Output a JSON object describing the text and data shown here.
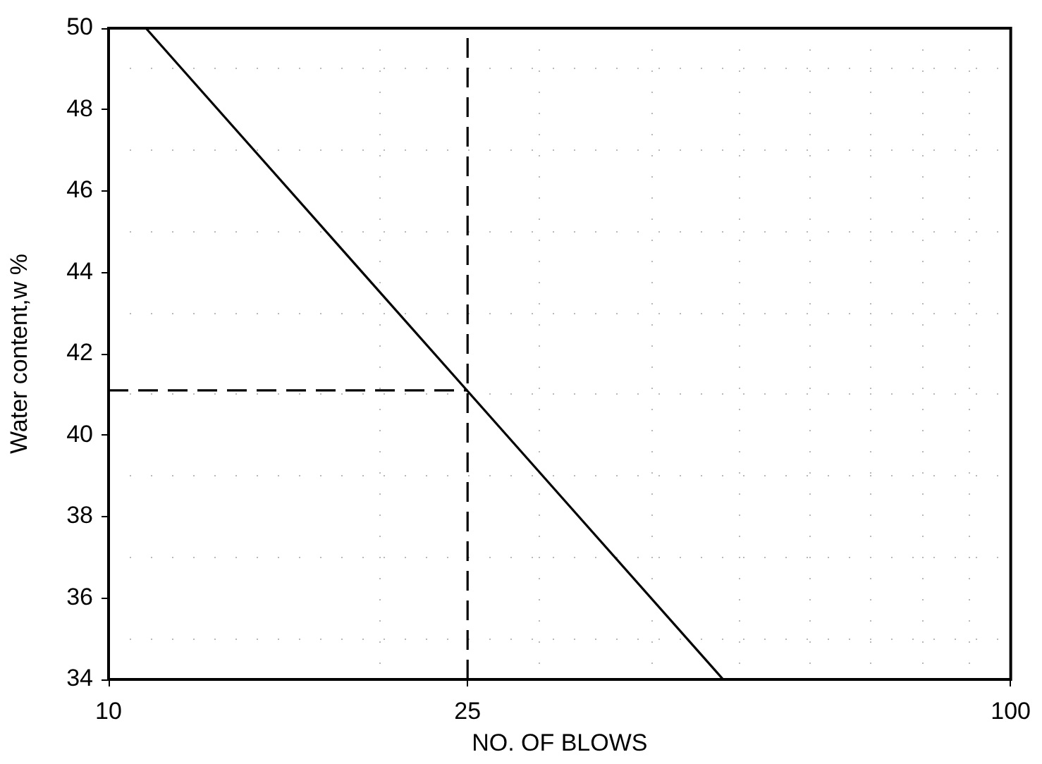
{
  "chart_data": {
    "type": "line",
    "xlabel": "NO. OF BLOWS",
    "ylabel": "Water content,w %",
    "log": "x",
    "xlim": [
      10,
      100
    ],
    "xticks": [
      10,
      {
        "value": 20,
        "label": null
      },
      25,
      {
        "value": 30,
        "label": null
      },
      {
        "value": 40,
        "label": null
      },
      {
        "value": 50,
        "label": null
      },
      {
        "value": 60,
        "label": null
      },
      {
        "value": 70,
        "label": null
      },
      {
        "value": 80,
        "label": null
      },
      {
        "value": 90,
        "label": null
      },
      100
    ],
    "ylim": [
      34,
      50
    ],
    "yticks": [
      34,
      {
        "value": 35,
        "label": null
      },
      36,
      {
        "value": 37,
        "label": null
      },
      38,
      {
        "value": 39,
        "label": null
      },
      40,
      {
        "value": 41,
        "label": null
      },
      42,
      {
        "value": 43,
        "label": null
      },
      44,
      {
        "value": 45,
        "label": null
      },
      46,
      {
        "value": 47,
        "label": null
      },
      48,
      {
        "value": 49,
        "label": null
      },
      50
    ],
    "grid": true,
    "marker": "none",
    "series": [
      {
        "color": "#000000",
        "x": [
          11,
          48
        ],
        "values": [
          50,
          34
        ],
        "line_style": "solid"
      },
      {
        "color": "#000000",
        "x": [
          10,
          25
        ],
        "values": [
          41.1,
          41.1
        ],
        "line_style": "dashed"
      }
    ],
    "ref_lines": [
      {
        "axis": "x",
        "value": 25,
        "color": "#000000",
        "line_style": "dashed"
      }
    ]
  }
}
